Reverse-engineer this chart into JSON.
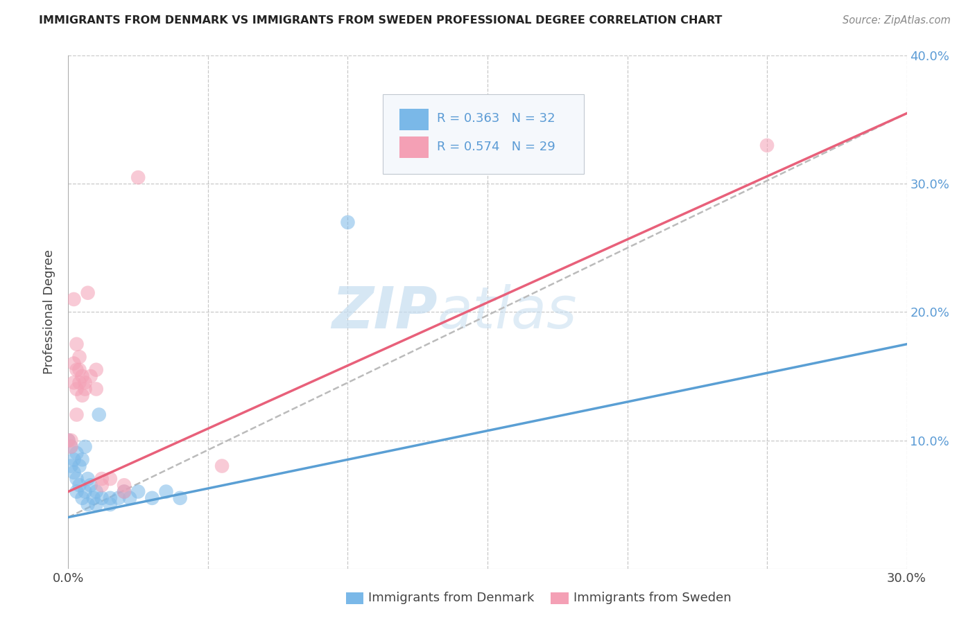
{
  "title": "IMMIGRANTS FROM DENMARK VS IMMIGRANTS FROM SWEDEN PROFESSIONAL DEGREE CORRELATION CHART",
  "source": "Source: ZipAtlas.com",
  "ylabel": "Professional Degree",
  "xlim": [
    0.0,
    0.3
  ],
  "ylim": [
    0.0,
    0.4
  ],
  "background_color": "#ffffff",
  "grid_color": "#c8c8c8",
  "denmark_color": "#7ab8e8",
  "sweden_color": "#f4a0b5",
  "denmark_line_color": "#5a9fd4",
  "sweden_line_color": "#e8607a",
  "denmark_R": 0.363,
  "denmark_N": 32,
  "sweden_R": 0.574,
  "sweden_N": 29,
  "legend_label_denmark": "Immigrants from Denmark",
  "legend_label_sweden": "Immigrants from Sweden",
  "watermark_zip": "ZIP",
  "watermark_atlas": "atlas",
  "denmark_points": [
    [
      0.0,
      0.1
    ],
    [
      0.001,
      0.095
    ],
    [
      0.001,
      0.08
    ],
    [
      0.002,
      0.085
    ],
    [
      0.002,
      0.075
    ],
    [
      0.003,
      0.09
    ],
    [
      0.003,
      0.07
    ],
    [
      0.003,
      0.06
    ],
    [
      0.004,
      0.08
    ],
    [
      0.004,
      0.065
    ],
    [
      0.005,
      0.085
    ],
    [
      0.005,
      0.055
    ],
    [
      0.006,
      0.095
    ],
    [
      0.006,
      0.06
    ],
    [
      0.007,
      0.07
    ],
    [
      0.007,
      0.05
    ],
    [
      0.008,
      0.065
    ],
    [
      0.009,
      0.055
    ],
    [
      0.01,
      0.06
    ],
    [
      0.01,
      0.05
    ],
    [
      0.011,
      0.12
    ],
    [
      0.012,
      0.055
    ],
    [
      0.015,
      0.055
    ],
    [
      0.015,
      0.05
    ],
    [
      0.018,
      0.055
    ],
    [
      0.02,
      0.06
    ],
    [
      0.022,
      0.055
    ],
    [
      0.025,
      0.06
    ],
    [
      0.03,
      0.055
    ],
    [
      0.035,
      0.06
    ],
    [
      0.04,
      0.055
    ],
    [
      0.1,
      0.27
    ]
  ],
  "sweden_points": [
    [
      0.0,
      0.1
    ],
    [
      0.001,
      0.095
    ],
    [
      0.001,
      0.1
    ],
    [
      0.002,
      0.21
    ],
    [
      0.002,
      0.16
    ],
    [
      0.002,
      0.145
    ],
    [
      0.003,
      0.175
    ],
    [
      0.003,
      0.155
    ],
    [
      0.003,
      0.14
    ],
    [
      0.003,
      0.12
    ],
    [
      0.004,
      0.165
    ],
    [
      0.004,
      0.155
    ],
    [
      0.004,
      0.145
    ],
    [
      0.005,
      0.15
    ],
    [
      0.005,
      0.135
    ],
    [
      0.006,
      0.145
    ],
    [
      0.006,
      0.14
    ],
    [
      0.007,
      0.215
    ],
    [
      0.008,
      0.15
    ],
    [
      0.01,
      0.155
    ],
    [
      0.01,
      0.14
    ],
    [
      0.012,
      0.07
    ],
    [
      0.012,
      0.065
    ],
    [
      0.015,
      0.07
    ],
    [
      0.02,
      0.065
    ],
    [
      0.02,
      0.06
    ],
    [
      0.025,
      0.305
    ],
    [
      0.055,
      0.08
    ],
    [
      0.25,
      0.33
    ]
  ],
  "dk_line_x": [
    0.0,
    0.3
  ],
  "dk_line_y": [
    0.04,
    0.175
  ],
  "sw_line_x": [
    0.0,
    0.3
  ],
  "sw_line_y": [
    0.06,
    0.355
  ],
  "dash_line_x": [
    0.0,
    0.3
  ],
  "dash_line_y": [
    0.04,
    0.355
  ]
}
